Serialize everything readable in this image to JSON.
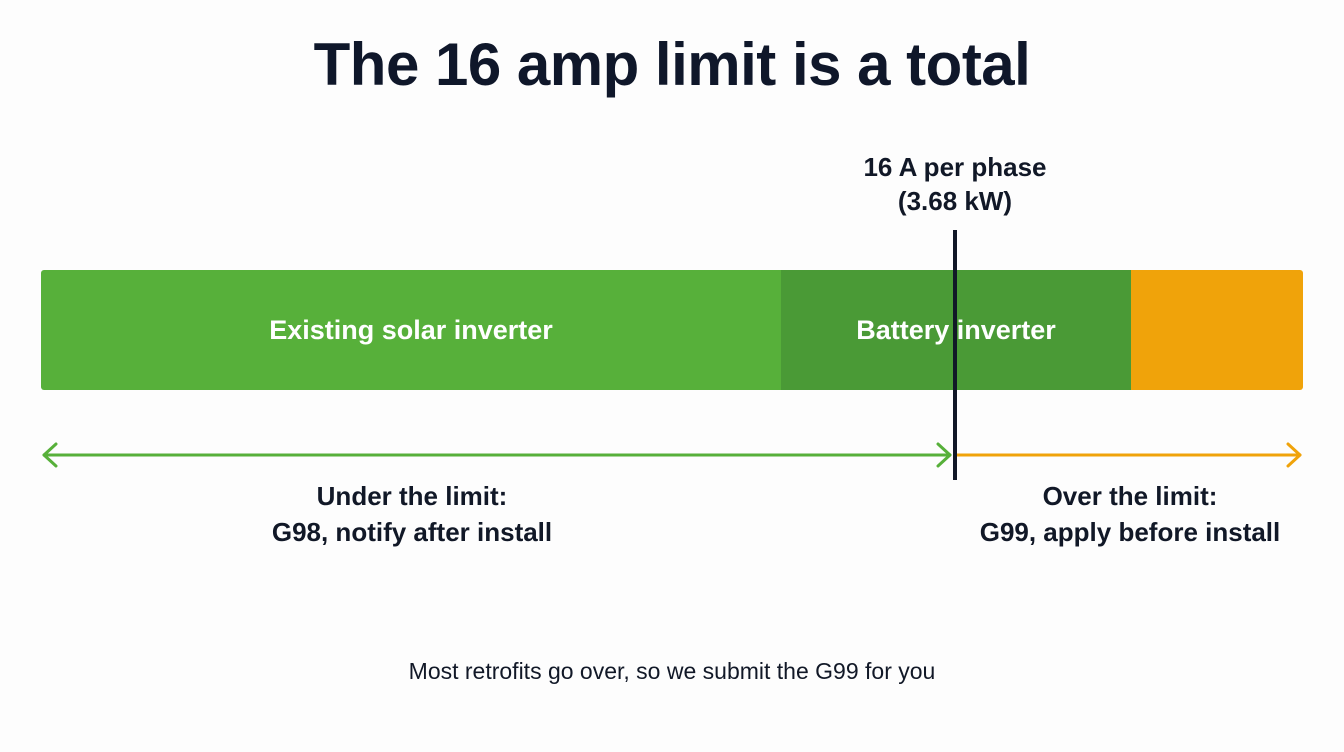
{
  "title": "The 16 amp limit is a total",
  "limit": {
    "line1": "16 A per phase",
    "line2": "(3.68 kW)"
  },
  "segments": [
    {
      "id": "solar",
      "label": "Existing solar inverter",
      "color": "#57b03a"
    },
    {
      "id": "battery",
      "label": "Battery inverter",
      "color": "#4a9a36"
    },
    {
      "id": "over",
      "label": "",
      "color": "#f0a30a"
    }
  ],
  "zones": {
    "under": {
      "line1": "Under the limit:",
      "line2": "G98, notify after install",
      "color": "#57b03a"
    },
    "over": {
      "line1": "Over the limit:",
      "line2": "G99, apply before install",
      "color": "#f0a30a"
    }
  },
  "footer": "Most retrofits go over, so we submit the G99 for you"
}
